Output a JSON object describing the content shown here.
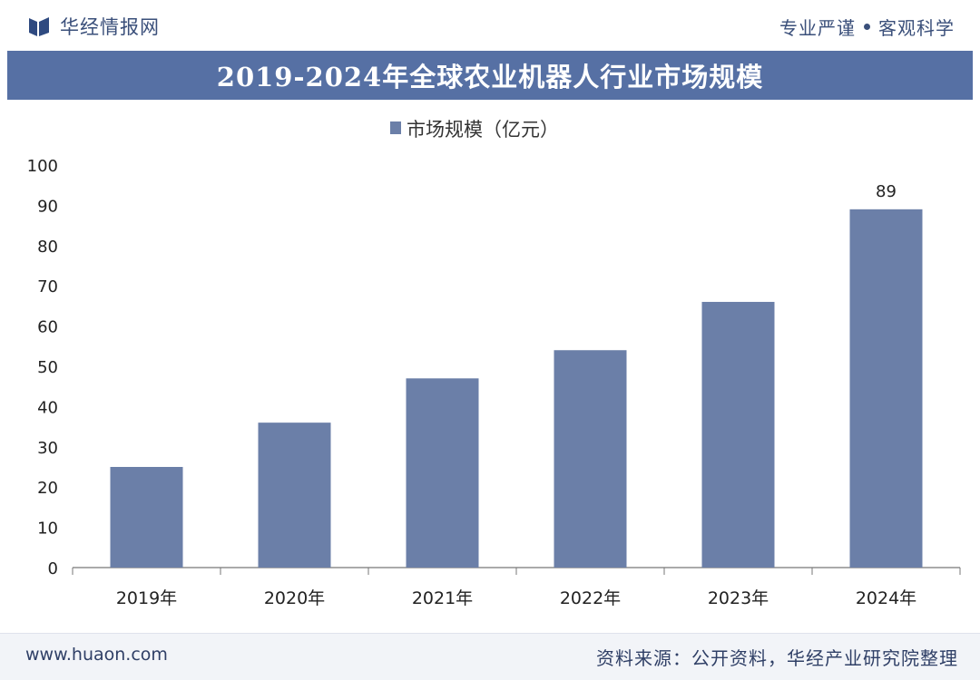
{
  "header": {
    "brand": "华经情报网",
    "slogan_left": "专业严谨",
    "slogan_right": "客观科学"
  },
  "colors": {
    "accent": "#5670a4",
    "bar": "#6b7fa8",
    "text_dark": "#2f3f66"
  },
  "chart_data": {
    "type": "bar",
    "title": "2019-2024年全球农业机器人行业市场规模",
    "categories": [
      "2019年",
      "2020年",
      "2021年",
      "2022年",
      "2023年",
      "2024年"
    ],
    "series": [
      {
        "name": "市场规模（亿元）",
        "values": [
          25,
          36,
          47,
          54,
          66,
          89
        ]
      }
    ],
    "data_labels": [
      null,
      null,
      null,
      null,
      null,
      "89"
    ],
    "ylim": [
      0,
      100
    ],
    "yticks": [
      0,
      10,
      20,
      30,
      40,
      50,
      60,
      70,
      80,
      90,
      100
    ],
    "xlabel": "",
    "ylabel": "",
    "legend_position": "top-center",
    "grid": false
  },
  "footer": {
    "url": "www.huaon.com",
    "source": "资料来源：公开资料，华经产业研究院整理"
  }
}
